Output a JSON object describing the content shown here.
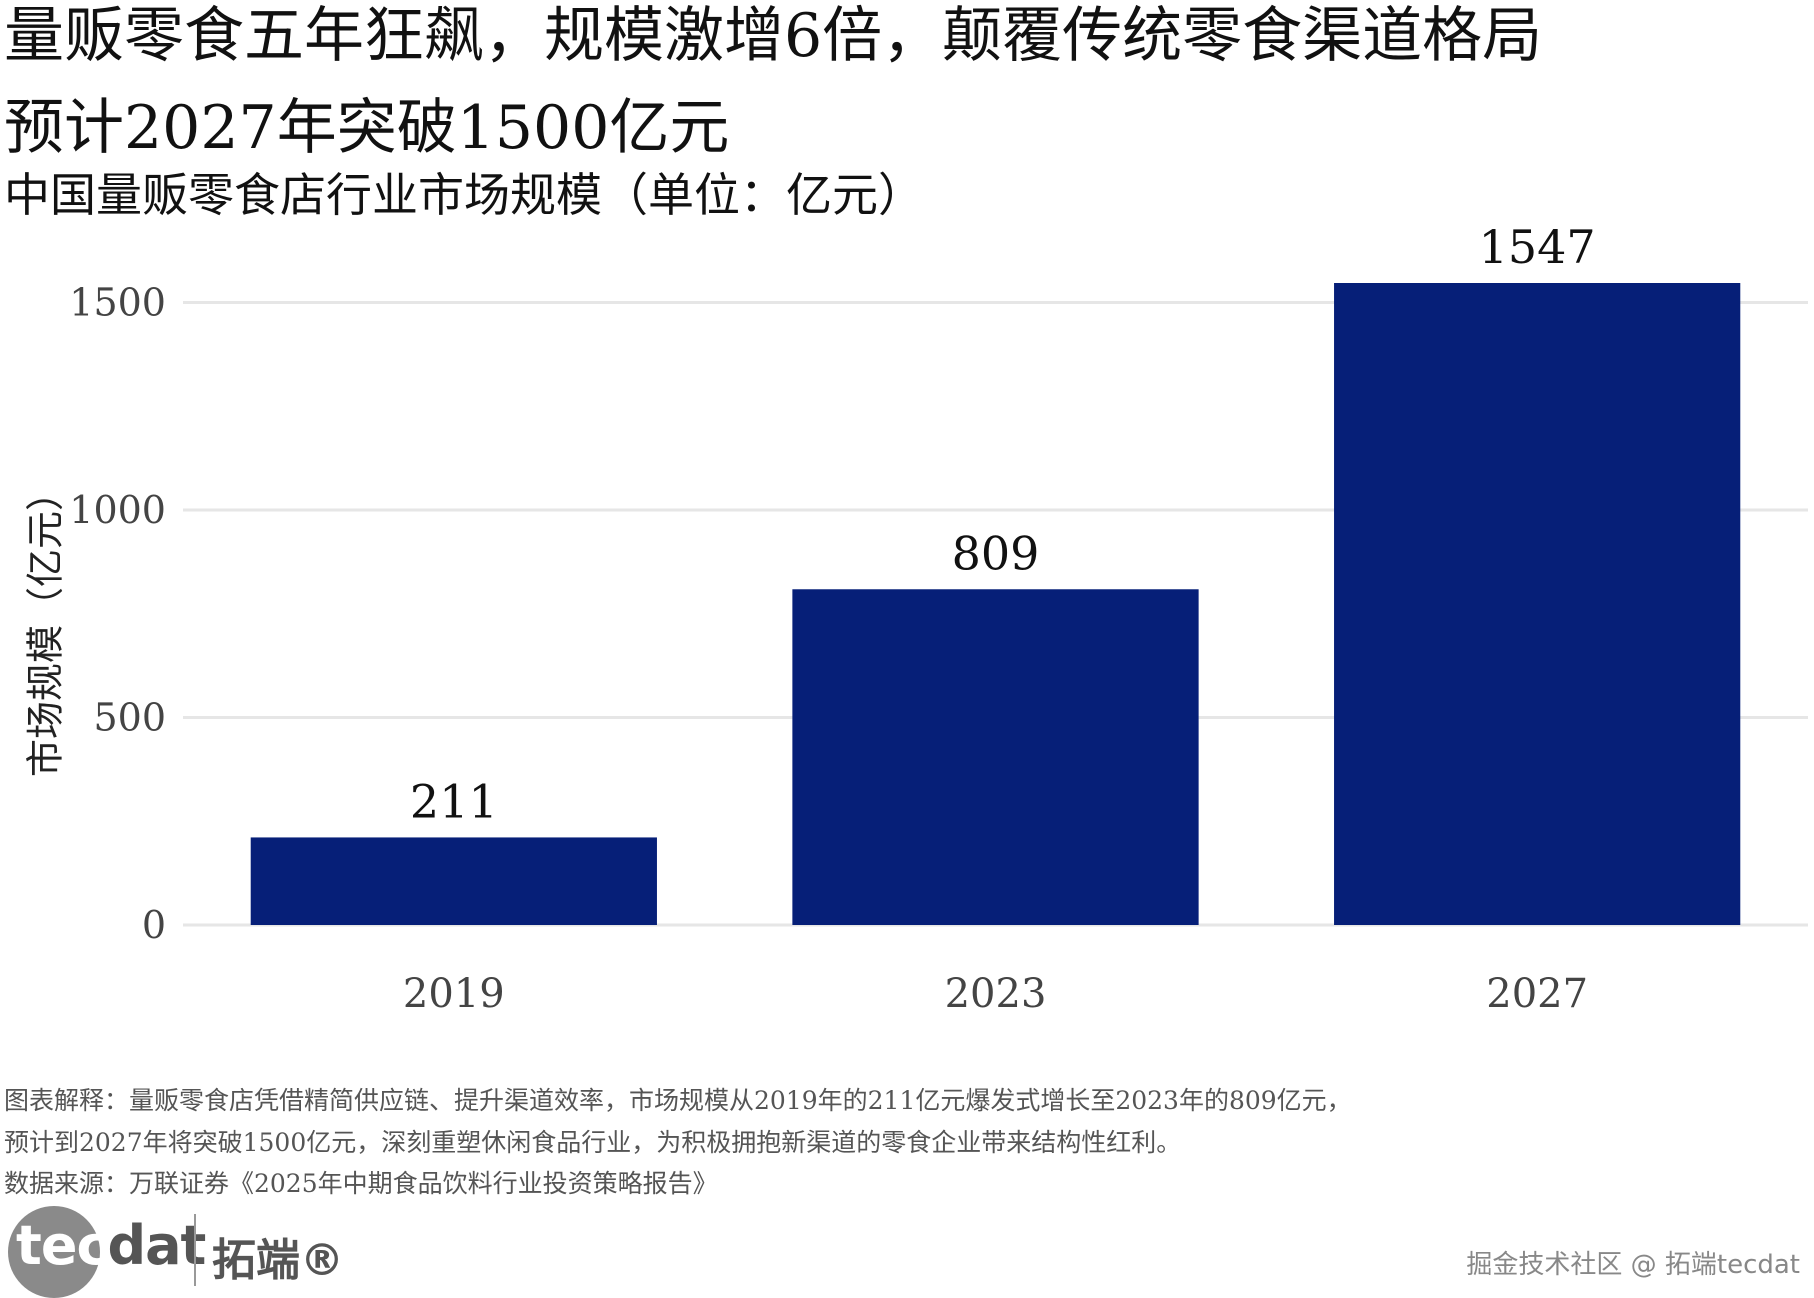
{
  "title_line1": "量贩零食五年狂飙，规模激增6倍，颠覆传统零食渠道格局",
  "title_line2": "预计2027年突破1500亿元",
  "subtitle": "中国量贩零食店行业市场规模（单位：亿元）",
  "colors": {
    "bar": "#061f78",
    "grid": "#e6e6e6",
    "text": "#222222"
  },
  "chart_data": {
    "type": "bar",
    "title": "中国量贩零食店行业市场规模（单位：亿元）",
    "xlabel": "",
    "ylabel": "市场规模（亿元）",
    "categories": [
      "2019",
      "2023",
      "2027"
    ],
    "values": [
      211,
      809,
      1547
    ],
    "data_labels": [
      "211",
      "809",
      "1547"
    ],
    "yticks": [
      0,
      500,
      1000,
      1500
    ],
    "ytick_labels": [
      "0",
      "500",
      "1000",
      "1500"
    ],
    "ylim": [
      0,
      1547
    ],
    "grid": true,
    "legend": "none"
  },
  "footnotes": [
    "图表解释：量贩零食店凭借精简供应链、提升渠道效率，市场规模从2019年的211亿元爆发式增长至2023年的809亿元，",
    "预计到2027年将突破1500亿元，深刻重塑休闲食品行业，为积极拥抱新渠道的零食企业带来结构性红利。",
    "数据来源：万联证券《2025年中期食品饮料行业投资策略报告》"
  ],
  "logo": {
    "text_tec": "tec",
    "text_dat": "dat",
    "text_cn": "拓端®"
  },
  "watermark": "掘金技术社区 @ 拓端tecdat"
}
